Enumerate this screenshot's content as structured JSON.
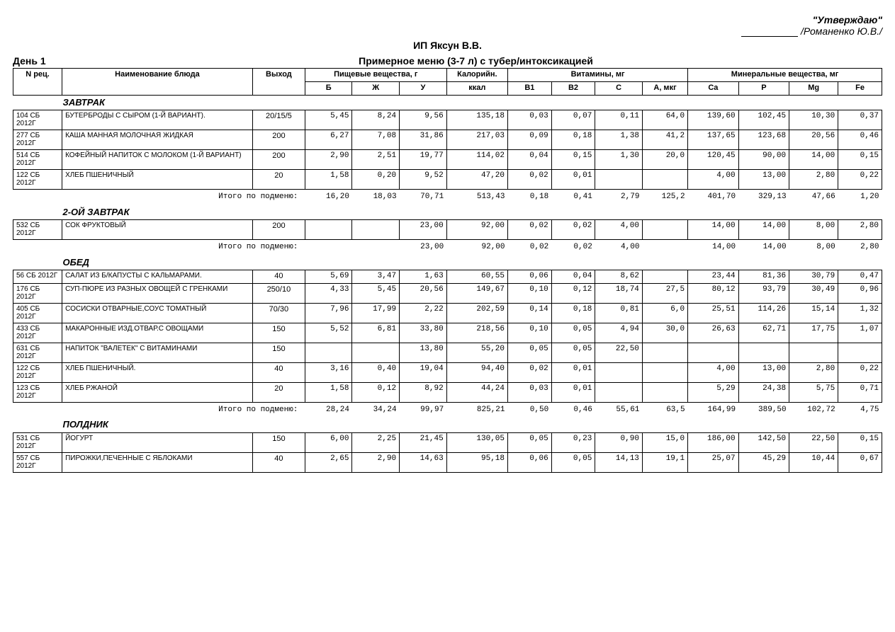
{
  "approval": {
    "quote": "\"Утверждаю\"",
    "name": "/Романенко Ю.В./"
  },
  "org": "ИП Яксун В.В.",
  "day": "День 1",
  "menu_title": "Примерное меню (3-7 л) с тубер/интоксикацией",
  "headers": {
    "rec": "N рец.",
    "name": "Наименование блюда",
    "out": "Выход",
    "nutrients_group": "Пищевые вещества, г",
    "kcal_group": "Калорийн.",
    "vitamins_group": "Витамины, мг",
    "minerals_group": "Минеральные вещества, мг",
    "b": "Б",
    "zh": "Ж",
    "u": "У",
    "kcal": "ккал",
    "b1": "В1",
    "b2": "В2",
    "c": "С",
    "a": "А, мкг",
    "ca": "Ca",
    "p": "P",
    "mg": "Mg",
    "fe": "Fe"
  },
  "subtotal_label": "Итого по подменю:",
  "sections": [
    {
      "name": "ЗАВТРАК",
      "rows": [
        {
          "rec": "104 СБ 2012Г",
          "dish": "БУТЕРБРОДЫ С СЫРОМ (1-Й ВАРИАНТ).",
          "out": "20/15/5",
          "b": "5,45",
          "zh": "8,24",
          "u": "9,56",
          "kcal": "135,18",
          "b1": "0,03",
          "b2": "0,07",
          "c": "0,11",
          "a": "64,0",
          "ca": "139,60",
          "p": "102,45",
          "mg": "10,30",
          "fe": "0,37"
        },
        {
          "rec": "277 СБ 2012Г",
          "dish": "КАША МАННАЯ МОЛОЧНАЯ ЖИДКАЯ",
          "out": "200",
          "b": "6,27",
          "zh": "7,08",
          "u": "31,86",
          "kcal": "217,03",
          "b1": "0,09",
          "b2": "0,18",
          "c": "1,38",
          "a": "41,2",
          "ca": "137,65",
          "p": "123,68",
          "mg": "20,56",
          "fe": "0,46"
        },
        {
          "rec": "514 СБ 2012Г",
          "dish": "КОФЕЙНЫЙ НАПИТОК С МОЛОКОМ (1-Й ВАРИАНТ)",
          "out": "200",
          "b": "2,90",
          "zh": "2,51",
          "u": "19,77",
          "kcal": "114,02",
          "b1": "0,04",
          "b2": "0,15",
          "c": "1,30",
          "a": "20,0",
          "ca": "120,45",
          "p": "90,00",
          "mg": "14,00",
          "fe": "0,15"
        },
        {
          "rec": "122 СБ 2012Г",
          "dish": "ХЛЕБ ПШЕНИЧНЫЙ",
          "out": "20",
          "b": "1,58",
          "zh": "0,20",
          "u": "9,52",
          "kcal": "47,20",
          "b1": "0,02",
          "b2": "0,01",
          "c": "",
          "a": "",
          "ca": "4,00",
          "p": "13,00",
          "mg": "2,80",
          "fe": "0,22"
        }
      ],
      "subtotal": {
        "b": "16,20",
        "zh": "18,03",
        "u": "70,71",
        "kcal": "513,43",
        "b1": "0,18",
        "b2": "0,41",
        "c": "2,79",
        "a": "125,2",
        "ca": "401,70",
        "p": "329,13",
        "mg": "47,66",
        "fe": "1,20"
      }
    },
    {
      "name": "2-ОЙ ЗАВТРАК",
      "rows": [
        {
          "rec": "532 СБ 2012Г",
          "dish": "СОК ФРУКТОВЫЙ",
          "out": "200",
          "b": "",
          "zh": "",
          "u": "23,00",
          "kcal": "92,00",
          "b1": "0,02",
          "b2": "0,02",
          "c": "4,00",
          "a": "",
          "ca": "14,00",
          "p": "14,00",
          "mg": "8,00",
          "fe": "2,80"
        }
      ],
      "subtotal": {
        "b": "",
        "zh": "",
        "u": "23,00",
        "kcal": "92,00",
        "b1": "0,02",
        "b2": "0,02",
        "c": "4,00",
        "a": "",
        "ca": "14,00",
        "p": "14,00",
        "mg": "8,00",
        "fe": "2,80"
      }
    },
    {
      "name": "ОБЕД",
      "rows": [
        {
          "rec": "56 СБ 2012Г",
          "dish": "САЛАТ ИЗ Б/КАПУСТЫ С КАЛЬМАРАМИ.",
          "out": "40",
          "b": "5,69",
          "zh": "3,47",
          "u": "1,63",
          "kcal": "60,55",
          "b1": "0,06",
          "b2": "0,04",
          "c": "8,62",
          "a": "",
          "ca": "23,44",
          "p": "81,36",
          "mg": "30,79",
          "fe": "0,47"
        },
        {
          "rec": "176 СБ 2012Г",
          "dish": "СУП-ПЮРЕ ИЗ РАЗНЫХ ОВОЩЕЙ С ГРЕНКАМИ",
          "out": "250/10",
          "b": "4,33",
          "zh": "5,45",
          "u": "20,56",
          "kcal": "149,67",
          "b1": "0,10",
          "b2": "0,12",
          "c": "18,74",
          "a": "27,5",
          "ca": "80,12",
          "p": "93,79",
          "mg": "30,49",
          "fe": "0,96"
        },
        {
          "rec": "405 СБ 2012Г",
          "dish": "СОСИСКИ ОТВАРНЫЕ,СОУС ТОМАТНЫЙ",
          "out": "70/30",
          "b": "7,96",
          "zh": "17,99",
          "u": "2,22",
          "kcal": "202,59",
          "b1": "0,14",
          "b2": "0,18",
          "c": "0,81",
          "a": "6,0",
          "ca": "25,51",
          "p": "114,26",
          "mg": "15,14",
          "fe": "1,32"
        },
        {
          "rec": "433 СБ 2012Г",
          "dish": "МАКАРОННЫЕ ИЗД.ОТВАР.С ОВОЩАМИ",
          "out": "150",
          "b": "5,52",
          "zh": "6,81",
          "u": "33,80",
          "kcal": "218,56",
          "b1": "0,10",
          "b2": "0,05",
          "c": "4,94",
          "a": "30,0",
          "ca": "26,63",
          "p": "62,71",
          "mg": "17,75",
          "fe": "1,07"
        },
        {
          "rec": "631 СБ 2012Г",
          "dish": "НАПИТОК \"ВАЛЕТЕК\" С ВИТАМИНАМИ",
          "out": "150",
          "b": "",
          "zh": "",
          "u": "13,80",
          "kcal": "55,20",
          "b1": "0,05",
          "b2": "0,05",
          "c": "22,50",
          "a": "",
          "ca": "",
          "p": "",
          "mg": "",
          "fe": ""
        },
        {
          "rec": "122 СБ 2012Г",
          "dish": "ХЛЕБ ПШЕНИЧНЫЙ.",
          "out": "40",
          "b": "3,16",
          "zh": "0,40",
          "u": "19,04",
          "kcal": "94,40",
          "b1": "0,02",
          "b2": "0,01",
          "c": "",
          "a": "",
          "ca": "4,00",
          "p": "13,00",
          "mg": "2,80",
          "fe": "0,22"
        },
        {
          "rec": "123 СБ 2012Г",
          "dish": "ХЛЕБ РЖАНОЙ",
          "out": "20",
          "b": "1,58",
          "zh": "0,12",
          "u": "8,92",
          "kcal": "44,24",
          "b1": "0,03",
          "b2": "0,01",
          "c": "",
          "a": "",
          "ca": "5,29",
          "p": "24,38",
          "mg": "5,75",
          "fe": "0,71"
        }
      ],
      "subtotal": {
        "b": "28,24",
        "zh": "34,24",
        "u": "99,97",
        "kcal": "825,21",
        "b1": "0,50",
        "b2": "0,46",
        "c": "55,61",
        "a": "63,5",
        "ca": "164,99",
        "p": "389,50",
        "mg": "102,72",
        "fe": "4,75"
      }
    },
    {
      "name": "ПОЛДНИК",
      "rows": [
        {
          "rec": "531 СБ 2012Г",
          "dish": "ЙОГУРТ",
          "out": "150",
          "b": "6,00",
          "zh": "2,25",
          "u": "21,45",
          "kcal": "130,05",
          "b1": "0,05",
          "b2": "0,23",
          "c": "0,90",
          "a": "15,0",
          "ca": "186,00",
          "p": "142,50",
          "mg": "22,50",
          "fe": "0,15"
        },
        {
          "rec": "557 СБ 2012Г",
          "dish": "ПИРОЖКИ,ПЕЧЕННЫЕ  С ЯБЛОКАМИ",
          "out": "40",
          "b": "2,65",
          "zh": "2,90",
          "u": "14,63",
          "kcal": "95,18",
          "b1": "0,06",
          "b2": "0,05",
          "c": "14,13",
          "a": "19,1",
          "ca": "25,07",
          "p": "45,29",
          "mg": "10,44",
          "fe": "0,67"
        }
      ]
    }
  ]
}
